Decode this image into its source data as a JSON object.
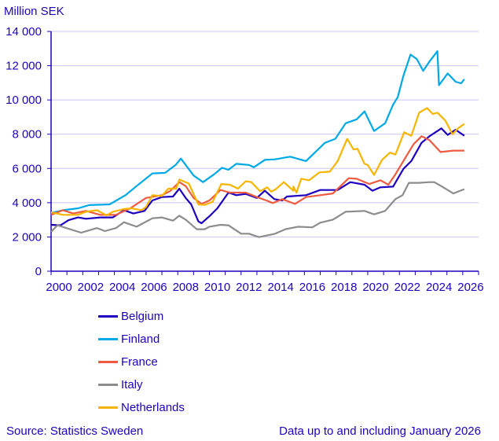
{
  "chart_data": {
    "type": "line",
    "title": "",
    "ylabel": "Million SEK",
    "xlabel": "",
    "ylim": [
      0,
      14000
    ],
    "xlim": [
      2000,
      2027
    ],
    "yticks": [
      0,
      2000,
      4000,
      6000,
      8000,
      10000,
      12000,
      14000
    ],
    "ytick_labels": [
      "0",
      "2 000",
      "4 000",
      "6 000",
      "8 000",
      "10 000",
      "12 000",
      "14 000"
    ],
    "xtick_labels": [
      "2000",
      "2002",
      "2004",
      "2006",
      "2008",
      "2010",
      "2012",
      "2014",
      "2016",
      "2018",
      "2020",
      "2022",
      "2024",
      "2026"
    ],
    "grid": true,
    "legend_position": "bottom",
    "series": [
      {
        "name": "Belgium",
        "color": "#1e00be",
        "points": [
          [
            2000.0,
            2710
          ],
          [
            2000.6,
            2680
          ],
          [
            2001.1,
            2980
          ],
          [
            2001.7,
            3140
          ],
          [
            2002.2,
            3060
          ],
          [
            2003.1,
            3140
          ],
          [
            2003.9,
            3140
          ],
          [
            2004.6,
            3560
          ],
          [
            2005.2,
            3370
          ],
          [
            2005.9,
            3520
          ],
          [
            2006.4,
            4130
          ],
          [
            2007.0,
            4330
          ],
          [
            2007.7,
            4360
          ],
          [
            2008.1,
            4820
          ],
          [
            2008.5,
            4280
          ],
          [
            2008.85,
            3900
          ],
          [
            2009.3,
            2910
          ],
          [
            2009.5,
            2800
          ],
          [
            2010.0,
            3210
          ],
          [
            2010.5,
            3670
          ],
          [
            2011.2,
            4590
          ],
          [
            2011.7,
            4440
          ],
          [
            2012.3,
            4510
          ],
          [
            2013.0,
            4280
          ],
          [
            2013.5,
            4700
          ],
          [
            2014.1,
            4210
          ],
          [
            2014.6,
            4130
          ],
          [
            2014.9,
            4360
          ],
          [
            2016.1,
            4440
          ],
          [
            2017.0,
            4740
          ],
          [
            2018.1,
            4740
          ],
          [
            2018.9,
            5200
          ],
          [
            2019.8,
            5050
          ],
          [
            2020.3,
            4700
          ],
          [
            2020.8,
            4900
          ],
          [
            2021.6,
            4940
          ],
          [
            2022.25,
            5970
          ],
          [
            2022.75,
            6430
          ],
          [
            2023.4,
            7500
          ],
          [
            2023.9,
            7880
          ],
          [
            2024.65,
            8340
          ],
          [
            2025.05,
            7960
          ],
          [
            2025.55,
            8260
          ],
          [
            2026.1,
            7910
          ]
        ]
      },
      {
        "name": "Finland",
        "color": "#00a9e6",
        "points": [
          [
            2000.0,
            3400
          ],
          [
            2000.75,
            3560
          ],
          [
            2001.7,
            3670
          ],
          [
            2002.4,
            3860
          ],
          [
            2003.7,
            3900
          ],
          [
            2004.7,
            4440
          ],
          [
            2005.4,
            4970
          ],
          [
            2006.4,
            5710
          ],
          [
            2007.2,
            5740
          ],
          [
            2007.86,
            6200
          ],
          [
            2008.2,
            6580
          ],
          [
            2009.0,
            5590
          ],
          [
            2009.6,
            5200
          ],
          [
            2010.3,
            5660
          ],
          [
            2010.8,
            6040
          ],
          [
            2011.2,
            5920
          ],
          [
            2011.7,
            6270
          ],
          [
            2012.5,
            6200
          ],
          [
            2012.8,
            6070
          ],
          [
            2013.5,
            6500
          ],
          [
            2014.15,
            6530
          ],
          [
            2015.1,
            6690
          ],
          [
            2016.1,
            6430
          ],
          [
            2017.3,
            7500
          ],
          [
            2017.95,
            7730
          ],
          [
            2018.6,
            8640
          ],
          [
            2019.3,
            8870
          ],
          [
            2019.8,
            9330
          ],
          [
            2020.4,
            8190
          ],
          [
            2021.1,
            8640
          ],
          [
            2021.6,
            9720
          ],
          [
            2021.9,
            10170
          ],
          [
            2022.25,
            11400
          ],
          [
            2022.7,
            12650
          ],
          [
            2023.1,
            12390
          ],
          [
            2023.5,
            11700
          ],
          [
            2023.9,
            12240
          ],
          [
            2024.4,
            12850
          ],
          [
            2024.5,
            10860
          ],
          [
            2025.05,
            11550
          ],
          [
            2025.55,
            11060
          ],
          [
            2025.9,
            10970
          ],
          [
            2026.1,
            11210
          ]
        ]
      },
      {
        "name": "France",
        "color": "#ee5a3f",
        "points": [
          [
            2000.0,
            3290
          ],
          [
            2000.75,
            3560
          ],
          [
            2001.4,
            3370
          ],
          [
            2002.2,
            3520
          ],
          [
            2003.1,
            3290
          ],
          [
            2004.1,
            3290
          ],
          [
            2005.0,
            3670
          ],
          [
            2006.0,
            4280
          ],
          [
            2007.0,
            4440
          ],
          [
            2007.5,
            4670
          ],
          [
            2008.1,
            5200
          ],
          [
            2008.5,
            4970
          ],
          [
            2009.0,
            4280
          ],
          [
            2009.5,
            3930
          ],
          [
            2010.0,
            4130
          ],
          [
            2010.7,
            4740
          ],
          [
            2011.3,
            4590
          ],
          [
            2012.3,
            4590
          ],
          [
            2013.0,
            4330
          ],
          [
            2013.6,
            4130
          ],
          [
            2014.0,
            3980
          ],
          [
            2014.6,
            4210
          ],
          [
            2015.4,
            3930
          ],
          [
            2016.1,
            4330
          ],
          [
            2017.0,
            4440
          ],
          [
            2017.8,
            4540
          ],
          [
            2018.8,
            5430
          ],
          [
            2019.3,
            5400
          ],
          [
            2020.1,
            5090
          ],
          [
            2020.8,
            5310
          ],
          [
            2021.3,
            5050
          ],
          [
            2021.75,
            5660
          ],
          [
            2022.4,
            6660
          ],
          [
            2022.9,
            7420
          ],
          [
            2023.4,
            7880
          ],
          [
            2023.9,
            7650
          ],
          [
            2024.6,
            6960
          ],
          [
            2025.4,
            7040
          ],
          [
            2026.1,
            7040
          ]
        ]
      },
      {
        "name": "Italy",
        "color": "#8c8c8c",
        "points": [
          [
            2000.0,
            2300
          ],
          [
            2000.4,
            2680
          ],
          [
            2001.9,
            2250
          ],
          [
            2002.9,
            2520
          ],
          [
            2003.4,
            2340
          ],
          [
            2004.1,
            2520
          ],
          [
            2004.6,
            2860
          ],
          [
            2005.4,
            2600
          ],
          [
            2006.4,
            3090
          ],
          [
            2007.0,
            3140
          ],
          [
            2007.7,
            2950
          ],
          [
            2008.1,
            3240
          ],
          [
            2008.5,
            3010
          ],
          [
            2009.2,
            2450
          ],
          [
            2009.7,
            2450
          ],
          [
            2010.0,
            2600
          ],
          [
            2010.7,
            2710
          ],
          [
            2011.2,
            2680
          ],
          [
            2012.0,
            2190
          ],
          [
            2012.5,
            2190
          ],
          [
            2013.0,
            2030
          ],
          [
            2013.15,
            1990
          ],
          [
            2014.15,
            2190
          ],
          [
            2014.8,
            2450
          ],
          [
            2015.6,
            2600
          ],
          [
            2016.5,
            2560
          ],
          [
            2017.0,
            2830
          ],
          [
            2017.8,
            3010
          ],
          [
            2018.6,
            3470
          ],
          [
            2019.8,
            3520
          ],
          [
            2020.4,
            3320
          ],
          [
            2021.1,
            3520
          ],
          [
            2021.75,
            4210
          ],
          [
            2022.2,
            4440
          ],
          [
            2022.6,
            5160
          ],
          [
            2023.2,
            5160
          ],
          [
            2023.9,
            5200
          ],
          [
            2024.2,
            5200
          ],
          [
            2024.7,
            4940
          ],
          [
            2025.4,
            4540
          ],
          [
            2026.1,
            4790
          ]
        ]
      },
      {
        "name": "Netherlands",
        "color": "#f7b500",
        "points": [
          [
            2000.0,
            3440
          ],
          [
            2000.75,
            3290
          ],
          [
            2001.7,
            3290
          ],
          [
            2002.2,
            3470
          ],
          [
            2002.9,
            3560
          ],
          [
            2003.5,
            3260
          ],
          [
            2003.9,
            3470
          ],
          [
            2004.6,
            3630
          ],
          [
            2005.1,
            3670
          ],
          [
            2005.7,
            3560
          ],
          [
            2006.0,
            3750
          ],
          [
            2006.4,
            4440
          ],
          [
            2007.0,
            4390
          ],
          [
            2007.4,
            4820
          ],
          [
            2007.9,
            4820
          ],
          [
            2008.1,
            5350
          ],
          [
            2008.7,
            5120
          ],
          [
            2009.3,
            3900
          ],
          [
            2009.7,
            3870
          ],
          [
            2010.2,
            4050
          ],
          [
            2010.75,
            5090
          ],
          [
            2011.3,
            5050
          ],
          [
            2011.8,
            4820
          ],
          [
            2012.3,
            5250
          ],
          [
            2012.65,
            5200
          ],
          [
            2013.2,
            4670
          ],
          [
            2013.65,
            4900
          ],
          [
            2013.9,
            4640
          ],
          [
            2014.2,
            4790
          ],
          [
            2014.7,
            5200
          ],
          [
            2015.5,
            4590
          ],
          [
            2015.3,
            4700
          ],
          [
            2015.3,
            4940
          ],
          [
            2015.8,
            5400
          ],
          [
            2016.3,
            5310
          ],
          [
            2016.95,
            5770
          ],
          [
            2017.6,
            5810
          ],
          [
            2018.1,
            6430
          ],
          [
            2018.7,
            7730
          ],
          [
            2019.1,
            7110
          ],
          [
            2019.35,
            7150
          ],
          [
            2019.8,
            6270
          ],
          [
            2020.0,
            6200
          ],
          [
            2020.4,
            5620
          ],
          [
            2020.9,
            6500
          ],
          [
            2021.4,
            6920
          ],
          [
            2021.75,
            6810
          ],
          [
            2022.3,
            8110
          ],
          [
            2022.75,
            7910
          ],
          [
            2023.25,
            9260
          ],
          [
            2023.75,
            9530
          ],
          [
            2024.1,
            9180
          ],
          [
            2024.4,
            9260
          ],
          [
            2024.9,
            8800
          ],
          [
            2025.35,
            7990
          ],
          [
            2025.7,
            8340
          ],
          [
            2026.1,
            8600
          ]
        ]
      }
    ]
  },
  "footer": {
    "source": "Source: Statistics Sweden",
    "note": "Data up to and including  January 2026"
  }
}
